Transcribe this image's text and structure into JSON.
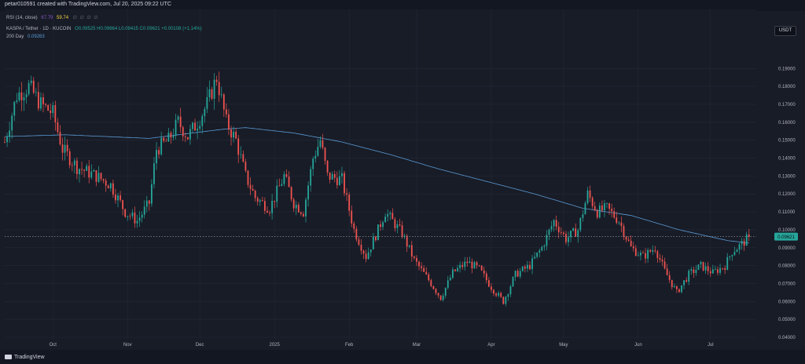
{
  "header": {
    "credit": "petar010591 created with TradingView.com, Jul 20, 2025 09:22 UTC"
  },
  "legend": {
    "rsi_label": "RSI (14, close)",
    "rsi_value_1": "67.79",
    "rsi_value_2": "59.74",
    "rsi_dots": "∅ ∅ ∅ ∅",
    "symbol": "KASPA / Tether · 1D · KUCOIN",
    "ohlc": "O0.09525 H0.09664 L0.09415 C0.09621 +0.00108 (+1.14%)",
    "ma_label": "200 Day",
    "ma_value": "0.09263"
  },
  "currency_button": "USDT",
  "footer": {
    "brand": "TradingView"
  },
  "colors": {
    "up": "#26a69a",
    "down": "#ef5350",
    "ma": "#5b9bd5",
    "last_price_bg": "#26a69a"
  },
  "chart_data": {
    "type": "candlestick",
    "symbol": "KASPA / Tether",
    "interval": "1D",
    "exchange": "KUCOIN",
    "ylim": [
      0.04,
      0.195
    ],
    "y_ticks": [
      "0.19000",
      "0.18000",
      "0.17000",
      "0.16000",
      "0.15000",
      "0.14000",
      "0.13000",
      "0.12000",
      "0.11000",
      "0.10000",
      "0.09000",
      "0.08000",
      "0.07000",
      "0.06000",
      "0.05000",
      "0.04000"
    ],
    "x_ticks": [
      {
        "label": "Oct",
        "day": 20
      },
      {
        "label": "Nov",
        "day": 51
      },
      {
        "label": "Dec",
        "day": 81
      },
      {
        "label": "2025",
        "day": 112
      },
      {
        "label": "Feb",
        "day": 143
      },
      {
        "label": "Mar",
        "day": 171
      },
      {
        "label": "Apr",
        "day": 202
      },
      {
        "label": "May",
        "day": 232
      },
      {
        "label": "Jun",
        "day": 263
      },
      {
        "label": "Jul",
        "day": 293
      }
    ],
    "days_total": 312,
    "last_price": "0.09621",
    "price_path": [
      [
        0,
        0.149
      ],
      [
        5,
        0.175
      ],
      [
        10,
        0.18
      ],
      [
        15,
        0.17
      ],
      [
        20,
        0.165
      ],
      [
        24,
        0.145
      ],
      [
        30,
        0.135
      ],
      [
        38,
        0.13
      ],
      [
        44,
        0.125
      ],
      [
        50,
        0.11
      ],
      [
        55,
        0.105
      ],
      [
        60,
        0.115
      ],
      [
        63,
        0.145
      ],
      [
        68,
        0.15
      ],
      [
        72,
        0.16
      ],
      [
        76,
        0.152
      ],
      [
        80,
        0.16
      ],
      [
        84,
        0.17
      ],
      [
        88,
        0.185
      ],
      [
        92,
        0.16
      ],
      [
        96,
        0.15
      ],
      [
        100,
        0.13
      ],
      [
        104,
        0.118
      ],
      [
        110,
        0.112
      ],
      [
        116,
        0.13
      ],
      [
        120,
        0.115
      ],
      [
        124,
        0.11
      ],
      [
        128,
        0.14
      ],
      [
        131,
        0.15
      ],
      [
        134,
        0.13
      ],
      [
        140,
        0.128
      ],
      [
        145,
        0.1
      ],
      [
        150,
        0.085
      ],
      [
        155,
        0.1
      ],
      [
        158,
        0.11
      ],
      [
        165,
        0.098
      ],
      [
        170,
        0.083
      ],
      [
        176,
        0.072
      ],
      [
        181,
        0.062
      ],
      [
        186,
        0.076
      ],
      [
        192,
        0.082
      ],
      [
        197,
        0.078
      ],
      [
        202,
        0.068
      ],
      [
        207,
        0.06
      ],
      [
        212,
        0.075
      ],
      [
        218,
        0.08
      ],
      [
        223,
        0.09
      ],
      [
        228,
        0.105
      ],
      [
        233,
        0.095
      ],
      [
        238,
        0.1
      ],
      [
        242,
        0.12
      ],
      [
        246,
        0.11
      ],
      [
        250,
        0.112
      ],
      [
        255,
        0.105
      ],
      [
        260,
        0.09
      ],
      [
        265,
        0.085
      ],
      [
        270,
        0.09
      ],
      [
        274,
        0.077
      ],
      [
        279,
        0.065
      ],
      [
        284,
        0.075
      ],
      [
        289,
        0.08
      ],
      [
        294,
        0.076
      ],
      [
        299,
        0.08
      ],
      [
        302,
        0.088
      ],
      [
        306,
        0.092
      ],
      [
        309,
        0.096
      ]
    ],
    "ma200_path": [
      [
        0,
        0.152
      ],
      [
        25,
        0.153
      ],
      [
        60,
        0.151
      ],
      [
        90,
        0.156
      ],
      [
        100,
        0.157
      ],
      [
        120,
        0.154
      ],
      [
        140,
        0.149
      ],
      [
        160,
        0.142
      ],
      [
        180,
        0.134
      ],
      [
        200,
        0.127
      ],
      [
        220,
        0.12
      ],
      [
        240,
        0.112
      ],
      [
        260,
        0.108
      ],
      [
        280,
        0.1
      ],
      [
        300,
        0.094
      ],
      [
        309,
        0.0926
      ]
    ]
  }
}
